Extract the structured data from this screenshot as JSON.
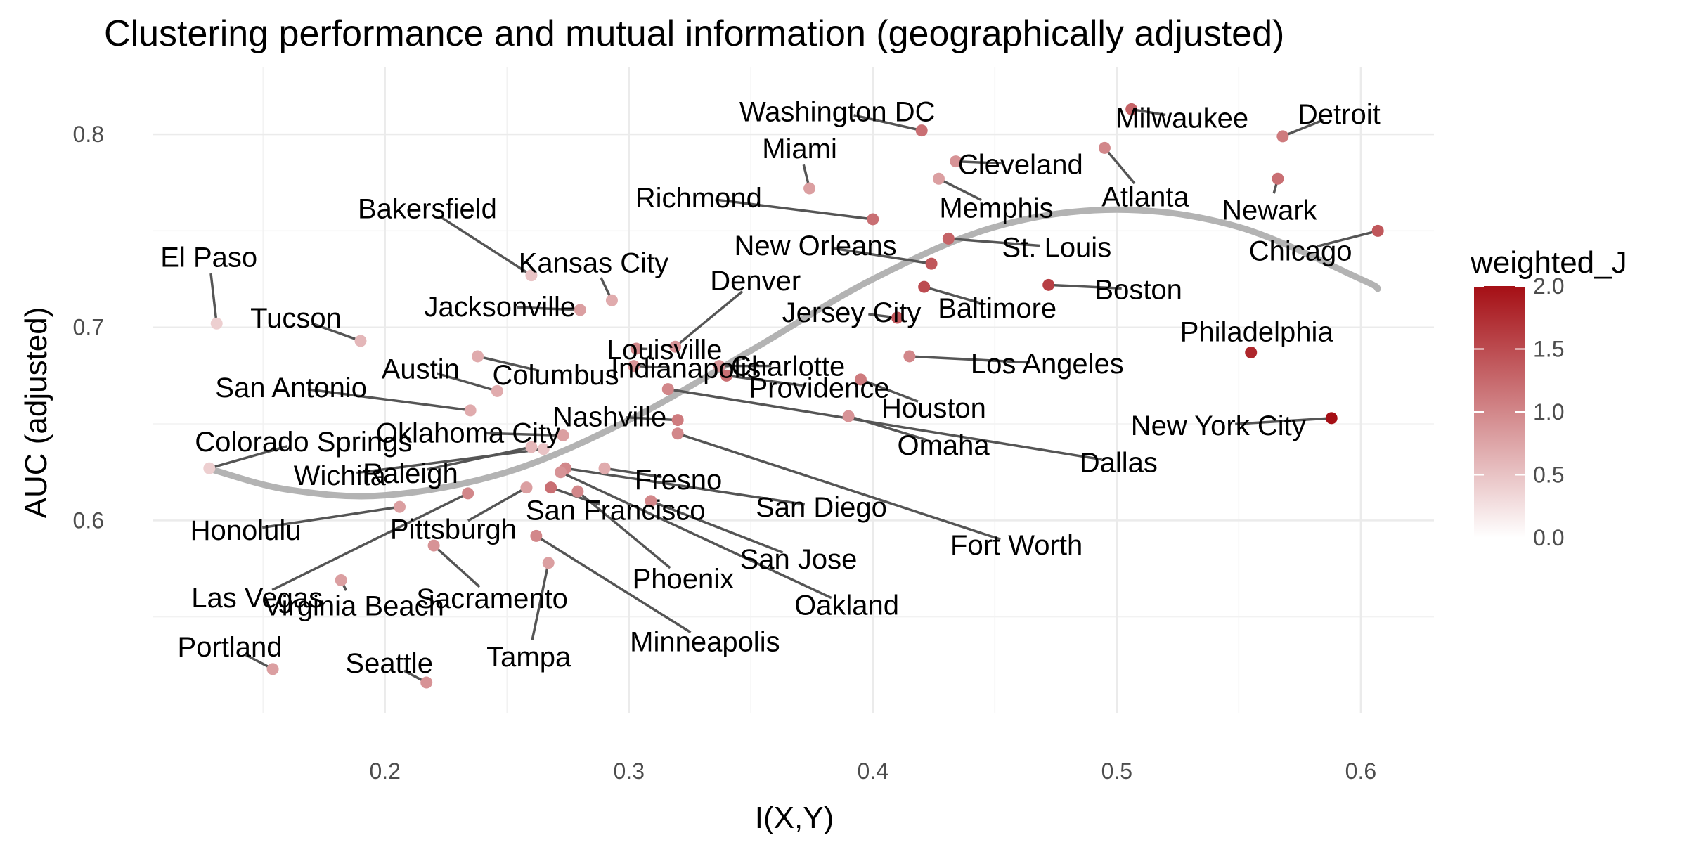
{
  "chart_data": {
    "type": "scatter",
    "title": "Clustering performance and mutual information (geographically adjusted)",
    "xlabel": "I(X,Y)",
    "ylabel": "AUC (adjusted)",
    "xlim": [
      0.105,
      0.63
    ],
    "ylim": [
      0.5,
      0.835
    ],
    "x_ticks": [
      "0.2",
      "0.3",
      "0.4",
      "0.5",
      "0.6"
    ],
    "x_tick_values": [
      0.2,
      0.3,
      0.4,
      0.5,
      0.6
    ],
    "y_ticks": [
      "0.6",
      "0.7",
      "0.8"
    ],
    "y_tick_values": [
      0.6,
      0.7,
      0.8
    ],
    "grid": true,
    "color_scale": {
      "name": "weighted_J",
      "min": 0.0,
      "max": 2.0,
      "ticks": [
        "0.0",
        "0.5",
        "1.0",
        "1.5",
        "2.0"
      ],
      "tick_values": [
        0.0,
        0.5,
        1.0,
        1.5,
        2.0
      ],
      "low_color": "#ffffff",
      "high_color": "#a50f15"
    },
    "trend_line": {
      "color": "#b3b3b3",
      "x": [
        0.13,
        0.16,
        0.2,
        0.25,
        0.3,
        0.35,
        0.4,
        0.45,
        0.5,
        0.55,
        0.6,
        0.607
      ],
      "y": [
        0.626,
        0.616,
        0.613,
        0.625,
        0.652,
        0.688,
        0.725,
        0.752,
        0.761,
        0.752,
        0.725,
        0.72
      ]
    },
    "points": [
      {
        "label": "Washington DC",
        "x": 0.42,
        "y": 0.802,
        "w": 1.2
      },
      {
        "label": "Milwaukee",
        "x": 0.506,
        "y": 0.813,
        "w": 1.3
      },
      {
        "label": "Detroit",
        "x": 0.568,
        "y": 0.799,
        "w": 1.1
      },
      {
        "label": "Cleveland",
        "x": 0.434,
        "y": 0.786,
        "w": 0.9
      },
      {
        "label": "Atlanta",
        "x": 0.495,
        "y": 0.793,
        "w": 1.0
      },
      {
        "label": "Miami",
        "x": 0.374,
        "y": 0.772,
        "w": 0.8
      },
      {
        "label": "Memphis",
        "x": 0.427,
        "y": 0.777,
        "w": 0.8
      },
      {
        "label": "Newark",
        "x": 0.566,
        "y": 0.777,
        "w": 1.2
      },
      {
        "label": "Richmond",
        "x": 0.4,
        "y": 0.756,
        "w": 1.2
      },
      {
        "label": "Chicago",
        "x": 0.607,
        "y": 0.75,
        "w": 1.4
      },
      {
        "label": "St. Louis",
        "x": 0.431,
        "y": 0.746,
        "w": 1.3
      },
      {
        "label": "New Orleans",
        "x": 0.424,
        "y": 0.733,
        "w": 1.4
      },
      {
        "label": "Bakersfield",
        "x": 0.26,
        "y": 0.727,
        "w": 0.5
      },
      {
        "label": "Kansas City",
        "x": 0.293,
        "y": 0.714,
        "w": 0.7
      },
      {
        "label": "Baltimore",
        "x": 0.421,
        "y": 0.721,
        "w": 1.5
      },
      {
        "label": "Boston",
        "x": 0.472,
        "y": 0.722,
        "w": 1.6
      },
      {
        "label": "El Paso",
        "x": 0.131,
        "y": 0.702,
        "w": 0.4
      },
      {
        "label": "Jacksonville",
        "x": 0.28,
        "y": 0.709,
        "w": 0.8
      },
      {
        "label": "Denver",
        "x": 0.319,
        "y": 0.69,
        "w": 0.9
      },
      {
        "label": "Jersey City",
        "x": 0.41,
        "y": 0.705,
        "w": 1.4
      },
      {
        "label": "Tucson",
        "x": 0.19,
        "y": 0.693,
        "w": 0.6
      },
      {
        "label": "Louisville",
        "x": 0.303,
        "y": 0.689,
        "w": 1.0
      },
      {
        "label": "Philadelphia",
        "x": 0.555,
        "y": 0.687,
        "w": 1.8
      },
      {
        "label": "Columbus",
        "x": 0.238,
        "y": 0.685,
        "w": 0.7
      },
      {
        "label": "Los Angeles",
        "x": 0.415,
        "y": 0.685,
        "w": 1.0
      },
      {
        "label": "Indianapolis",
        "x": 0.302,
        "y": 0.68,
        "w": 0.9
      },
      {
        "label": "Charlotte",
        "x": 0.337,
        "y": 0.68,
        "w": 0.9
      },
      {
        "label": "Providence",
        "x": 0.34,
        "y": 0.675,
        "w": 1.2
      },
      {
        "label": "Houston",
        "x": 0.395,
        "y": 0.673,
        "w": 1.1
      },
      {
        "label": "Austin",
        "x": 0.246,
        "y": 0.667,
        "w": 0.7
      },
      {
        "label": "San Antonio",
        "x": 0.235,
        "y": 0.657,
        "w": 0.7
      },
      {
        "label": "Nashville",
        "x": 0.32,
        "y": 0.652,
        "w": 1.1
      },
      {
        "label": "Omaha",
        "x": 0.39,
        "y": 0.654,
        "w": 0.9
      },
      {
        "label": "Dallas",
        "x": 0.316,
        "y": 0.668,
        "w": 1.0
      },
      {
        "label": "New York City",
        "x": 0.588,
        "y": 0.653,
        "w": 2.0
      },
      {
        "label": "Oklahoma City",
        "x": 0.273,
        "y": 0.644,
        "w": 0.8
      },
      {
        "label": "Colorado Springs",
        "x": 0.128,
        "y": 0.627,
        "w": 0.4
      },
      {
        "label": "Fort Worth",
        "x": 0.32,
        "y": 0.645,
        "w": 1.0
      },
      {
        "label": "Wichita",
        "x": 0.265,
        "y": 0.637,
        "w": 0.5
      },
      {
        "label": "Raleigh",
        "x": 0.26,
        "y": 0.638,
        "w": 0.6
      },
      {
        "label": "Fresno",
        "x": 0.29,
        "y": 0.627,
        "w": 0.7
      },
      {
        "label": "San Diego",
        "x": 0.274,
        "y": 0.627,
        "w": 1.0
      },
      {
        "label": "Honolulu",
        "x": 0.206,
        "y": 0.607,
        "w": 0.8
      },
      {
        "label": "Las Vegas",
        "x": 0.234,
        "y": 0.614,
        "w": 1.0
      },
      {
        "label": "Pittsburgh",
        "x": 0.258,
        "y": 0.617,
        "w": 0.8
      },
      {
        "label": "San Francisco",
        "x": 0.268,
        "y": 0.617,
        "w": 1.2
      },
      {
        "label": "Phoenix",
        "x": 0.279,
        "y": 0.615,
        "w": 1.0
      },
      {
        "label": "San Jose",
        "x": 0.309,
        "y": 0.61,
        "w": 1.0
      },
      {
        "label": "Oakland",
        "x": 0.272,
        "y": 0.625,
        "w": 0.9
      },
      {
        "label": "Minneapolis",
        "x": 0.262,
        "y": 0.592,
        "w": 1.0
      },
      {
        "label": "Sacramento",
        "x": 0.22,
        "y": 0.587,
        "w": 0.9
      },
      {
        "label": "Tampa",
        "x": 0.267,
        "y": 0.578,
        "w": 0.8
      },
      {
        "label": "Virginia Beach",
        "x": 0.182,
        "y": 0.569,
        "w": 0.8
      },
      {
        "label": "Portland",
        "x": 0.154,
        "y": 0.523,
        "w": 0.8
      },
      {
        "label": "Seattle",
        "x": 0.217,
        "y": 0.516,
        "w": 0.9
      }
    ]
  }
}
